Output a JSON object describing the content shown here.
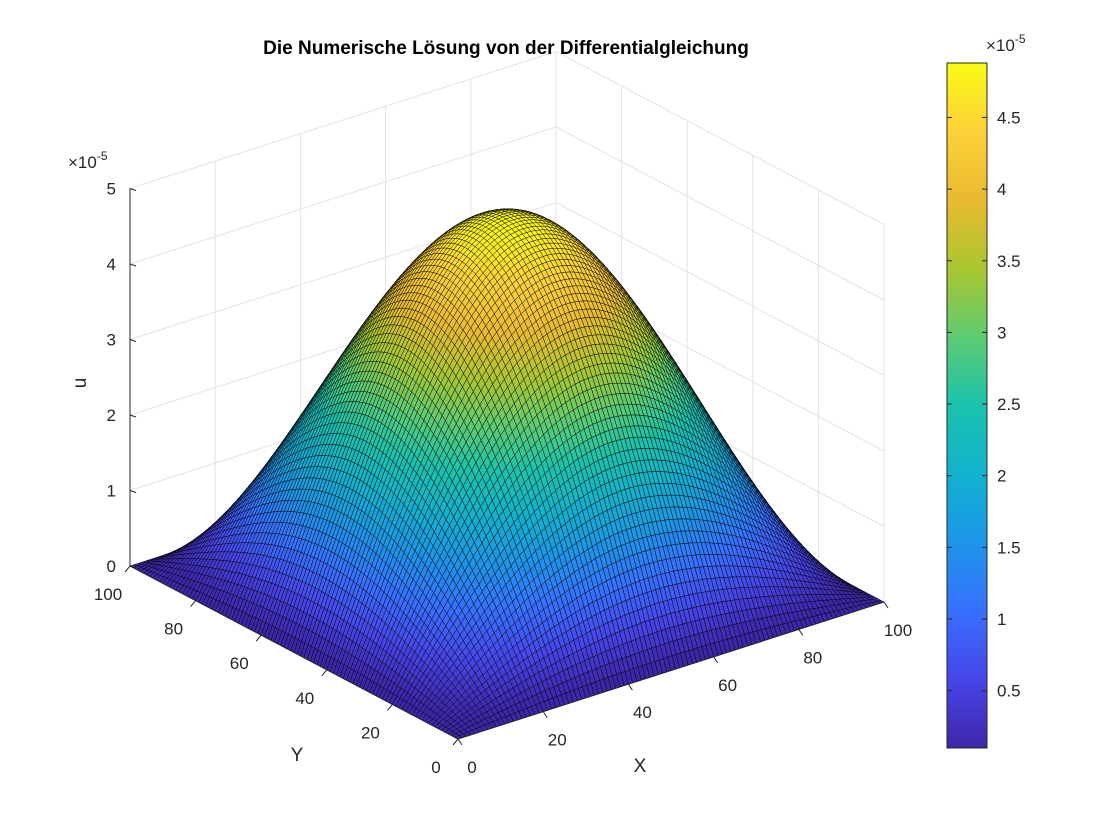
{
  "chart_data": {
    "type": "surface",
    "title": "Die Numerische Lösung von der Differentialgleichung",
    "xlabel": "X",
    "ylabel": "Y",
    "zlabel": "u",
    "z_exponent_label": "×10",
    "z_exponent": "-5",
    "colorbar_exponent_label": "×10",
    "colorbar_exponent": "-5",
    "xlim": [
      0,
      100
    ],
    "ylim": [
      0,
      100
    ],
    "zlim": [
      0,
      5e-05
    ],
    "x_ticks": [
      "0",
      "20",
      "40",
      "60",
      "80",
      "100"
    ],
    "y_ticks": [
      "0",
      "20",
      "40",
      "60",
      "80",
      "100"
    ],
    "z_ticks": [
      "0",
      "1",
      "2",
      "3",
      "4",
      "5"
    ],
    "colorbar_ticks": [
      "0.5",
      "1",
      "1.5",
      "2",
      "2.5",
      "3",
      "3.5",
      "4",
      "4.5"
    ],
    "colorbar_range": [
      1e-06,
      4.88e-05
    ],
    "surface": {
      "function": "peak * sin(pi*x/100) * sin(pi*y/100)",
      "peak": 4.88e-05,
      "edge_min": 1e-06,
      "grid_points": 100
    },
    "colormap": "parula",
    "grid": true
  }
}
